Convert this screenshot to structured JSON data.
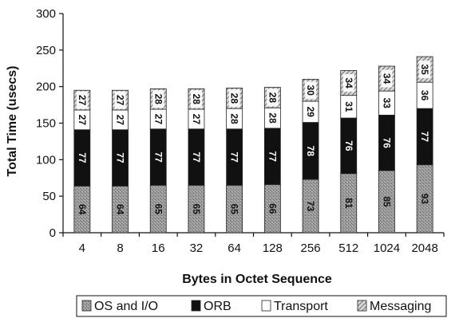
{
  "chart_data": {
    "type": "bar",
    "stacked": true,
    "xlabel": "Bytes in Octet Sequence",
    "ylabel": "Total Time (usecs)",
    "ylim": [
      0,
      300
    ],
    "yticks": [
      0,
      50,
      100,
      150,
      200,
      250,
      300
    ],
    "grid": false,
    "legend_position": "bottom",
    "categories": [
      "4",
      "8",
      "16",
      "32",
      "64",
      "128",
      "256",
      "512",
      "1024",
      "2048"
    ],
    "series": [
      {
        "name": "OS and I/O",
        "values": [
          64,
          64,
          65,
          65,
          65,
          66,
          73,
          81,
          85,
          93
        ],
        "color": "#8c8c8c",
        "pattern": "speckle"
      },
      {
        "name": "ORB",
        "values": [
          77,
          77,
          77,
          77,
          77,
          77,
          78,
          76,
          76,
          77
        ],
        "color": "#111111",
        "pattern": "solid"
      },
      {
        "name": "Transport",
        "values": [
          27,
          27,
          27,
          27,
          28,
          28,
          29,
          31,
          33,
          36
        ],
        "color": "#ffffff",
        "pattern": "solid"
      },
      {
        "name": "Messaging",
        "values": [
          27,
          27,
          28,
          28,
          28,
          28,
          30,
          34,
          34,
          35
        ],
        "color": "#aaaaaa",
        "pattern": "hatch"
      }
    ]
  }
}
